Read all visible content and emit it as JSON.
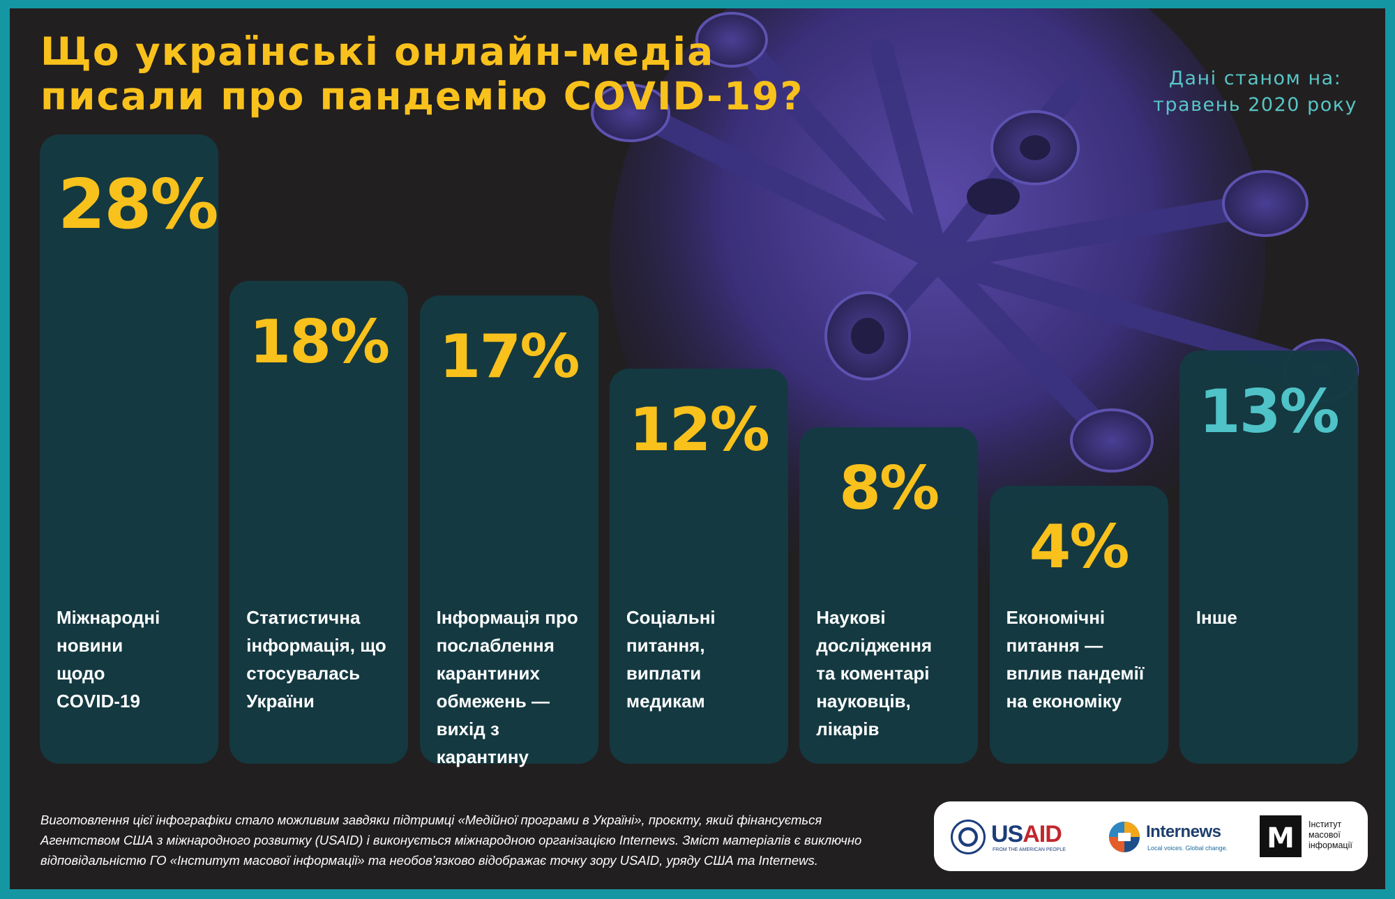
{
  "title_lines": [
    "Що українські онлайн-медіа",
    "писали про пандемію COVID-19?"
  ],
  "data_date_lines": [
    "Дані станом на:",
    "травень 2020 року"
  ],
  "colors": {
    "frame": "#1597a3",
    "background": "#221f21",
    "bar": "#143a42",
    "value_highlight": "#f9c11c",
    "value_other": "#4fc3c7",
    "label": "#ffffff"
  },
  "chart_data": {
    "type": "bar",
    "unit": "%",
    "categories": [
      [
        "Міжнародні",
        "новини",
        "щодо",
        "COVID-19"
      ],
      [
        "Статистична",
        "інформація, що",
        "стосувалась",
        "України"
      ],
      [
        "Інформація про",
        "послаблення",
        "карантиних",
        "обмежень —",
        "вихід з",
        "карантину"
      ],
      [
        "Соціальні",
        "питання,",
        "виплати",
        "медикам"
      ],
      [
        "Наукові",
        "дослідження",
        "та коментарі",
        "науковців,",
        "лікарів"
      ],
      [
        "Економічні",
        "питання —",
        "вплив пандемії",
        "на економіку"
      ],
      [
        "Інше"
      ]
    ],
    "values": [
      28,
      18,
      17,
      12,
      8,
      4,
      13
    ],
    "value_labels": [
      "28%",
      "18%",
      "17%",
      "12%",
      "8%",
      "4%",
      "13%"
    ],
    "ylim": [
      0,
      28
    ],
    "grid": false,
    "legend": "none"
  },
  "footnote_lines": [
    "Виготовлення цієї інфографіки стало можливим завдяки підтримці «Медійної програми в Україні», проєкту, який фінансується",
    "Агентством США з міжнародного розвитку (USAID) і виконується міжнародною організацією Internews. Зміст матеріалів є виключно",
    "відповідальністю ГО «Інститут масової інформації» та необов’язково відображає точку зору USAID, уряду США та Internews."
  ],
  "logos": {
    "usaid": {
      "name_part1": "US",
      "name_part2": "AID",
      "tagline": "FROM THE AMERICAN PEOPLE",
      "icon": "usaid-seal-icon"
    },
    "internews": {
      "name": "Internews",
      "tagline": "Local voices. Global change.",
      "icon": "internews-mark-icon"
    },
    "imi": {
      "mark": "М",
      "text_lines": [
        "Інститут",
        "масової",
        "інформації"
      ],
      "icon": "imi-mark-icon"
    }
  },
  "background_image": "virus-illustration"
}
